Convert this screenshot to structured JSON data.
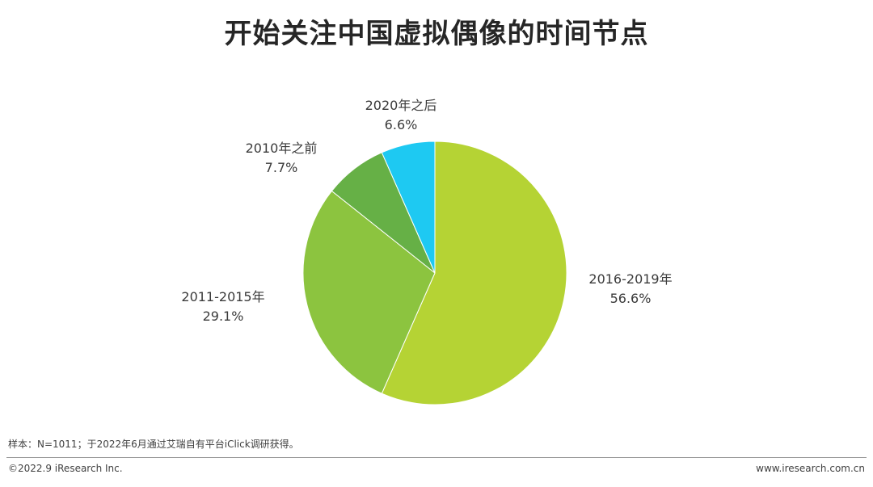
{
  "chart_data": {
    "type": "pie",
    "title": "开始关注中国虚拟偶像的时间节点",
    "slices": [
      {
        "label": "2016-2019年",
        "value": 56.6,
        "value_text": "56.6%",
        "color": "#b5d334"
      },
      {
        "label": "2011-2015年",
        "value": 29.1,
        "value_text": "29.1%",
        "color": "#8cc43f"
      },
      {
        "label": "2010年之前",
        "value": 7.7,
        "value_text": "7.7%",
        "color": "#66b046"
      },
      {
        "label": "2020年之后",
        "value": 6.6,
        "value_text": "6.6%",
        "color": "#1ec9f2"
      }
    ]
  },
  "footnote": "样本：N=1011；于2022年6月通过艾瑞自有平台iClick调研获得。",
  "footer": {
    "copyright": "©2022.9 iResearch Inc.",
    "website": "www.iresearch.com.cn"
  }
}
